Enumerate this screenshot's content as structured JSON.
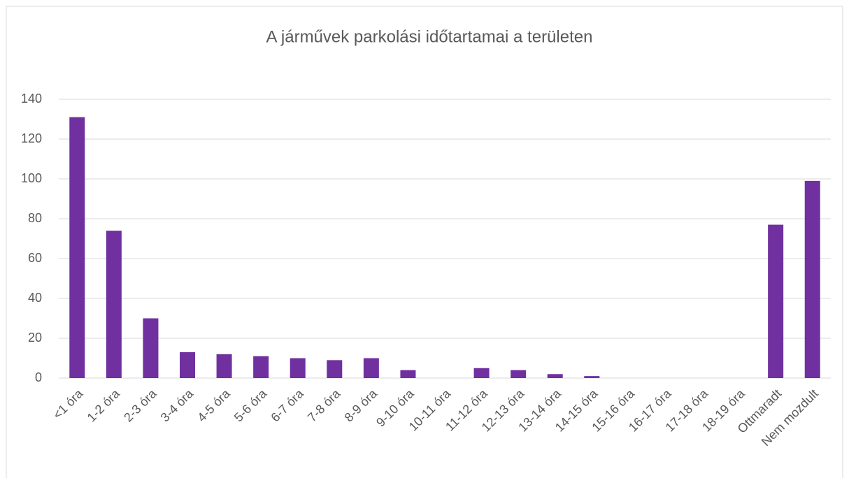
{
  "chart_data": {
    "type": "bar",
    "title": "A járművek parkolási időtartamai a területen",
    "categories": [
      "<1 óra",
      "1-2 óra",
      "2-3 óra",
      "3-4 óra",
      "4-5 óra",
      "5-6 óra",
      "6-7 óra",
      "7-8 óra",
      "8-9 óra",
      "9-10 óra",
      "10-11 óra",
      "11-12 óra",
      "12-13 óra",
      "13-14 óra",
      "14-15 óra",
      "15-16 óra",
      "16-17 óra",
      "17-18 óra",
      "18-19 óra",
      "Ottmaradt",
      "Nem mozdult"
    ],
    "values": [
      131,
      74,
      30,
      13,
      12,
      11,
      10,
      9,
      10,
      4,
      0,
      5,
      4,
      2,
      1,
      0,
      0,
      0,
      0,
      77,
      99
    ],
    "color": "#7030a0",
    "ylim": [
      0,
      140
    ],
    "yticks": [
      0,
      20,
      40,
      60,
      80,
      100,
      120,
      140
    ],
    "grid": true
  }
}
